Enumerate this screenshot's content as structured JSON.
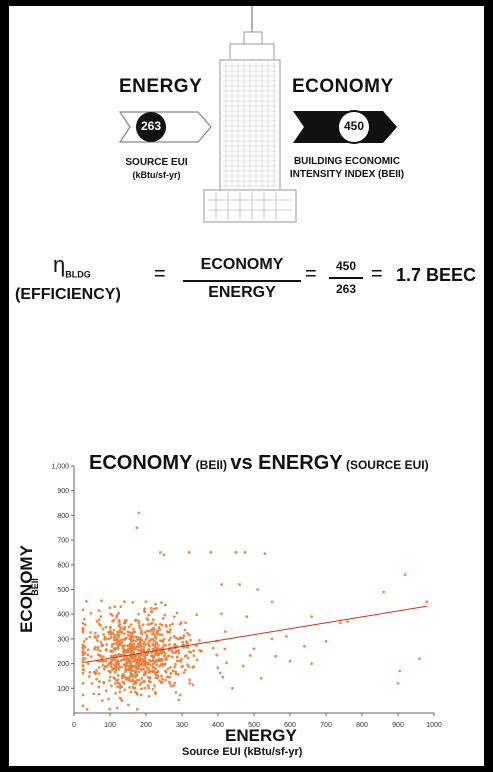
{
  "infographic": {
    "energy": {
      "heading": "ENERGY",
      "value": "263",
      "label_line1": "SOURCE EUI",
      "label_line2": "(kBtu/sf-yr)"
    },
    "economy": {
      "heading": "ECONOMY",
      "value": "450",
      "label_line1": "BUILDING ECONOMIC",
      "label_line2": "INTENSITY INDEX (BEII)"
    }
  },
  "equation": {
    "eta": "η",
    "eta_sub": "BLDG",
    "efficiency": "(EFFICIENCY)",
    "eq1": "=",
    "numerator": "ECONOMY",
    "denominator": "ENERGY",
    "eq2": "=",
    "num_value": "450",
    "den_value": "263",
    "eq3": "=",
    "result": "1.7 BEEC"
  },
  "chart_title": {
    "part1": "ECONOMY",
    "part2": " (BEII) ",
    "part3": "vs ENERGY",
    "part4": " (SOURCE EUI)"
  },
  "chart_data": {
    "type": "scatter",
    "title": "ECONOMY (BEII) vs ENERGY (SOURCE EUI)",
    "xlabel": "ENERGY",
    "xlabel_sub": "Source EUI (kBtu/sf-yr)",
    "ylabel": "ECONOMY",
    "ylabel_sub": "BEII",
    "xlim": [
      0,
      1000
    ],
    "ylim": [
      0,
      1000
    ],
    "x_ticks": [
      "0",
      "100",
      "200",
      "300",
      "400",
      "500",
      "600",
      "700",
      "800",
      "900",
      "1000"
    ],
    "y_ticks": [
      "100",
      "200",
      "300",
      "400",
      "500",
      "600",
      "700",
      "800",
      "900",
      "1,000"
    ],
    "grid": false,
    "point_color": "#e8803a",
    "trend_color": "#d62b1f",
    "trendline": {
      "x": [
        30,
        980
      ],
      "y": [
        205,
        432
      ]
    },
    "outliers": [
      {
        "x": 180,
        "y": 810
      },
      {
        "x": 175,
        "y": 750
      },
      {
        "x": 240,
        "y": 650
      },
      {
        "x": 250,
        "y": 640
      },
      {
        "x": 320,
        "y": 650
      },
      {
        "x": 380,
        "y": 650
      },
      {
        "x": 450,
        "y": 650
      },
      {
        "x": 475,
        "y": 650
      },
      {
        "x": 530,
        "y": 645
      },
      {
        "x": 460,
        "y": 520
      },
      {
        "x": 510,
        "y": 500
      },
      {
        "x": 550,
        "y": 450
      },
      {
        "x": 660,
        "y": 390
      },
      {
        "x": 700,
        "y": 290
      },
      {
        "x": 740,
        "y": 365
      },
      {
        "x": 860,
        "y": 490
      },
      {
        "x": 920,
        "y": 560
      },
      {
        "x": 980,
        "y": 450
      },
      {
        "x": 905,
        "y": 170
      },
      {
        "x": 960,
        "y": 220
      },
      {
        "x": 900,
        "y": 120
      },
      {
        "x": 600,
        "y": 210
      },
      {
        "x": 660,
        "y": 200
      },
      {
        "x": 520,
        "y": 140
      },
      {
        "x": 560,
        "y": 230
      },
      {
        "x": 440,
        "y": 100
      },
      {
        "x": 470,
        "y": 190
      },
      {
        "x": 590,
        "y": 310
      },
      {
        "x": 640,
        "y": 270
      },
      {
        "x": 420,
        "y": 330
      },
      {
        "x": 500,
        "y": 260
      },
      {
        "x": 90,
        "y": 90
      },
      {
        "x": 60,
        "y": 160
      },
      {
        "x": 40,
        "y": 200
      },
      {
        "x": 50,
        "y": 120
      },
      {
        "x": 120,
        "y": 20
      },
      {
        "x": 480,
        "y": 390
      },
      {
        "x": 410,
        "y": 520
      },
      {
        "x": 760,
        "y": 370
      },
      {
        "x": 550,
        "y": 300
      }
    ],
    "cluster": {
      "count": 820,
      "cx": 180,
      "cy": 240,
      "sx": 80,
      "sy": 95,
      "seed": 7
    }
  }
}
